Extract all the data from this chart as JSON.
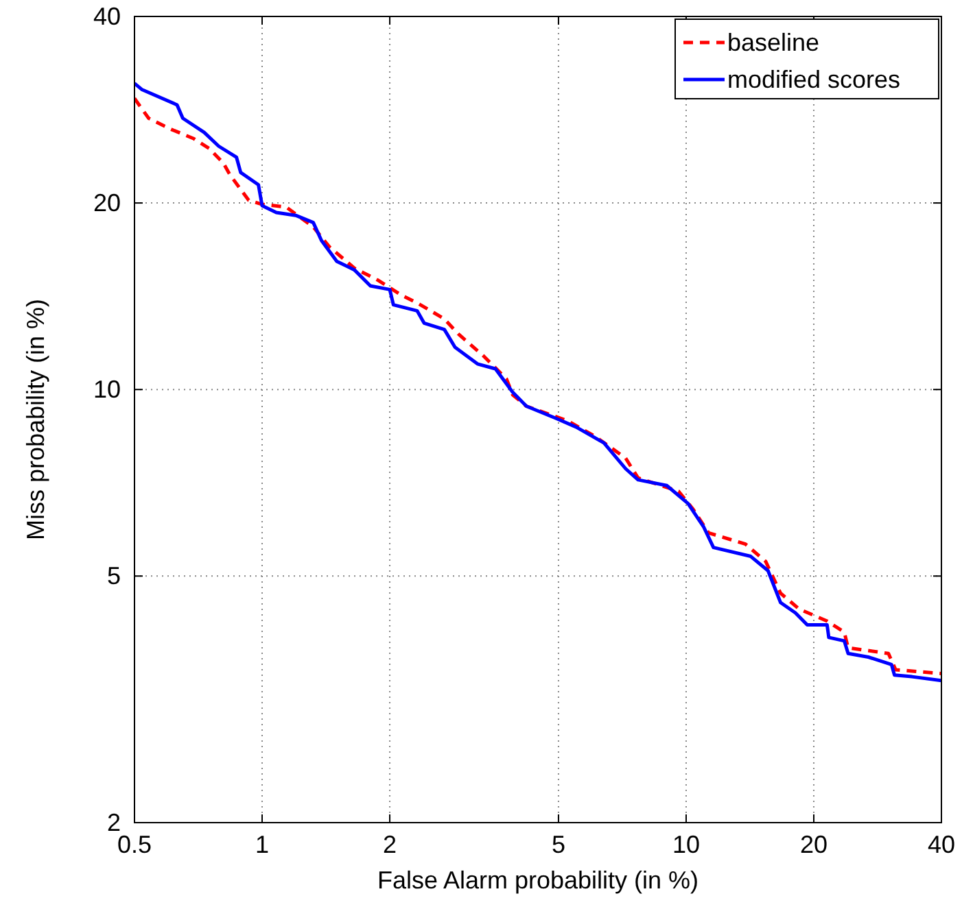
{
  "chart_data": {
    "type": "line",
    "xlabel": "False Alarm probability (in %)",
    "ylabel": "Miss probability (in %)",
    "xlim": [
      0.5,
      40
    ],
    "ylim": [
      2,
      40
    ],
    "xticks": [
      0.5,
      1,
      2,
      5,
      10,
      20,
      40
    ],
    "yticks": [
      2,
      5,
      10,
      20,
      40
    ],
    "grid": true,
    "legend": "top right",
    "log": "xy",
    "series": [
      {
        "name": "baseline",
        "color": "#ff0000",
        "line_style": "dashed",
        "x": [
          0.5,
          0.54,
          0.61,
          0.69,
          0.75,
          0.81,
          0.84,
          0.93,
          1.0,
          1.14,
          1.32,
          1.44,
          1.65,
          1.88,
          2.13,
          2.32,
          2.69,
          2.9,
          3.34,
          3.77,
          3.9,
          4.2,
          5.26,
          6.1,
          7.2,
          7.7,
          9.6,
          10.4,
          11.3,
          13.8,
          15.4,
          16.7,
          18.5,
          21.5,
          23.6,
          24.1,
          30.0,
          31.2,
          40
        ],
        "values": [
          29.5,
          27.4,
          26.3,
          25.4,
          24.5,
          23.2,
          22.2,
          20.2,
          19.9,
          19.7,
          18.3,
          17.0,
          15.7,
          15.0,
          14.2,
          13.8,
          13.0,
          12.3,
          11.3,
          10.4,
          9.8,
          9.4,
          8.9,
          8.4,
          7.75,
          7.2,
          6.85,
          6.4,
          5.87,
          5.63,
          5.28,
          4.69,
          4.42,
          4.23,
          4.06,
          3.83,
          3.75,
          3.53,
          3.48
        ]
      },
      {
        "name": "modified scores",
        "color": "#0000ff",
        "line_style": "solid",
        "x": [
          0.5,
          0.52,
          0.63,
          0.65,
          0.73,
          0.79,
          0.87,
          0.89,
          0.98,
          1.0,
          1.08,
          1.2,
          1.32,
          1.38,
          1.5,
          1.65,
          1.8,
          2.0,
          2.04,
          2.32,
          2.41,
          2.69,
          2.85,
          3.22,
          3.55,
          3.9,
          4.2,
          4.9,
          5.5,
          6.4,
          7.2,
          7.7,
          9.0,
          10.1,
          11.0,
          11.6,
          14.2,
          15.6,
          16.7,
          18.1,
          19.3,
          21.5,
          21.7,
          23.6,
          24.1,
          26.9,
          30.5,
          31.0,
          34.1,
          40
        ],
        "values": [
          31.2,
          30.5,
          28.8,
          27.4,
          26.0,
          24.7,
          23.7,
          22.4,
          21.4,
          19.8,
          19.3,
          19.1,
          18.6,
          17.4,
          16.1,
          15.6,
          14.7,
          14.5,
          13.7,
          13.4,
          12.8,
          12.5,
          11.7,
          11.0,
          10.8,
          9.9,
          9.4,
          9.0,
          8.7,
          8.2,
          7.45,
          7.15,
          7.0,
          6.55,
          6.0,
          5.56,
          5.38,
          5.1,
          4.53,
          4.36,
          4.17,
          4.17,
          3.98,
          3.93,
          3.75,
          3.7,
          3.6,
          3.46,
          3.44,
          3.39
        ]
      }
    ]
  }
}
